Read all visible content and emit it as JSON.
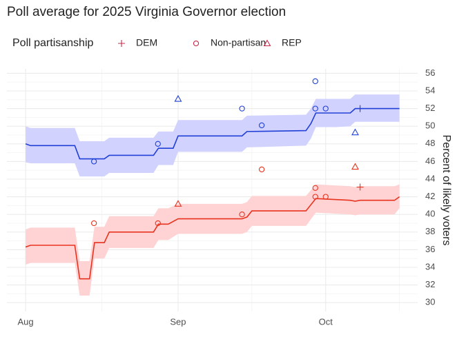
{
  "chart_data": {
    "type": "line",
    "title": "Poll average for 2025 Virginia Governor election",
    "y_label": "Percent of likely voters",
    "legend_title": "Poll partisanship",
    "legend_color": "#c8284a",
    "xlim": [
      -3.8,
      79.7
    ],
    "ylim": [
      29,
      56.5
    ],
    "xticks": [
      {
        "value": 0,
        "label": "Aug"
      },
      {
        "value": 31,
        "label": "Sep"
      },
      {
        "value": 61,
        "label": "Oct"
      }
    ],
    "yticks": [
      30,
      32,
      34,
      36,
      38,
      40,
      42,
      44,
      46,
      48,
      50,
      52,
      54,
      56
    ],
    "grid": true,
    "series": [
      {
        "color": "#1f3fd6",
        "band_color": "#d2d2ff",
        "x": [
          0,
          1,
          10,
          11,
          16,
          17,
          26,
          27,
          30,
          31,
          44,
          45,
          57,
          58,
          59,
          63,
          66,
          67,
          76
        ],
        "values": [
          48.0,
          47.8,
          47.8,
          46.3,
          46.3,
          46.7,
          46.7,
          47.5,
          47.5,
          48.9,
          48.9,
          49.4,
          49.5,
          50.3,
          51.5,
          51.5,
          51.5,
          52.0,
          52.0
        ],
        "lower": [
          45.9,
          45.8,
          45.8,
          44.3,
          44.3,
          44.7,
          44.7,
          45.6,
          45.6,
          47.1,
          47.1,
          47.6,
          47.8,
          48.6,
          49.9,
          49.9,
          50.0,
          50.5,
          50.5
        ],
        "upper": [
          50.0,
          49.8,
          49.8,
          48.3,
          48.3,
          48.7,
          48.7,
          49.4,
          49.4,
          50.7,
          50.7,
          51.2,
          51.3,
          52.0,
          53.1,
          53.1,
          53.1,
          53.6,
          53.6
        ]
      },
      {
        "color": "#e8321e",
        "band_color": "#ffd3d3",
        "x": [
          0,
          1,
          10,
          11,
          13,
          14,
          16,
          17,
          26,
          27,
          29,
          31,
          44,
          45,
          46,
          57,
          59,
          66,
          67,
          68,
          75,
          76
        ],
        "values": [
          36.3,
          36.5,
          36.5,
          32.7,
          32.7,
          36.8,
          36.8,
          38.0,
          38.0,
          38.9,
          38.9,
          39.5,
          39.5,
          39.7,
          40.4,
          40.4,
          41.8,
          41.6,
          41.5,
          41.6,
          41.6,
          42.0
        ],
        "lower": [
          34.3,
          34.5,
          34.5,
          30.8,
          30.8,
          35.0,
          35.0,
          36.2,
          36.2,
          37.1,
          37.1,
          37.8,
          37.8,
          38.0,
          38.7,
          38.7,
          40.2,
          40.0,
          39.9,
          40.0,
          40.0,
          40.7
        ],
        "upper": [
          38.3,
          38.5,
          38.5,
          34.7,
          34.7,
          38.6,
          38.6,
          39.8,
          39.8,
          40.7,
          40.7,
          41.2,
          41.2,
          41.4,
          42.1,
          42.1,
          43.4,
          43.2,
          43.1,
          43.2,
          43.2,
          43.4
        ]
      }
    ],
    "poll_groups": [
      {
        "name": "DEM",
        "shape": "plus",
        "x": [
          68
        ],
        "dem": [
          52.0
        ],
        "rep": [
          43.1
        ]
      },
      {
        "name": "Non-partisan",
        "shape": "circle",
        "x": [
          13.9,
          26.9,
          44,
          48,
          58.9,
          58.9,
          61
        ],
        "dem": [
          46.0,
          48.0,
          52.0,
          50.1,
          55.1,
          52.0,
          52.0
        ],
        "rep": [
          39.0,
          39.0,
          40.0,
          45.1,
          43.0,
          42.0,
          42.0
        ]
      },
      {
        "name": "REP",
        "shape": "triangle",
        "x": [
          31,
          67
        ],
        "dem": [
          53.1,
          49.3
        ],
        "rep": [
          41.2,
          45.4
        ]
      }
    ]
  }
}
